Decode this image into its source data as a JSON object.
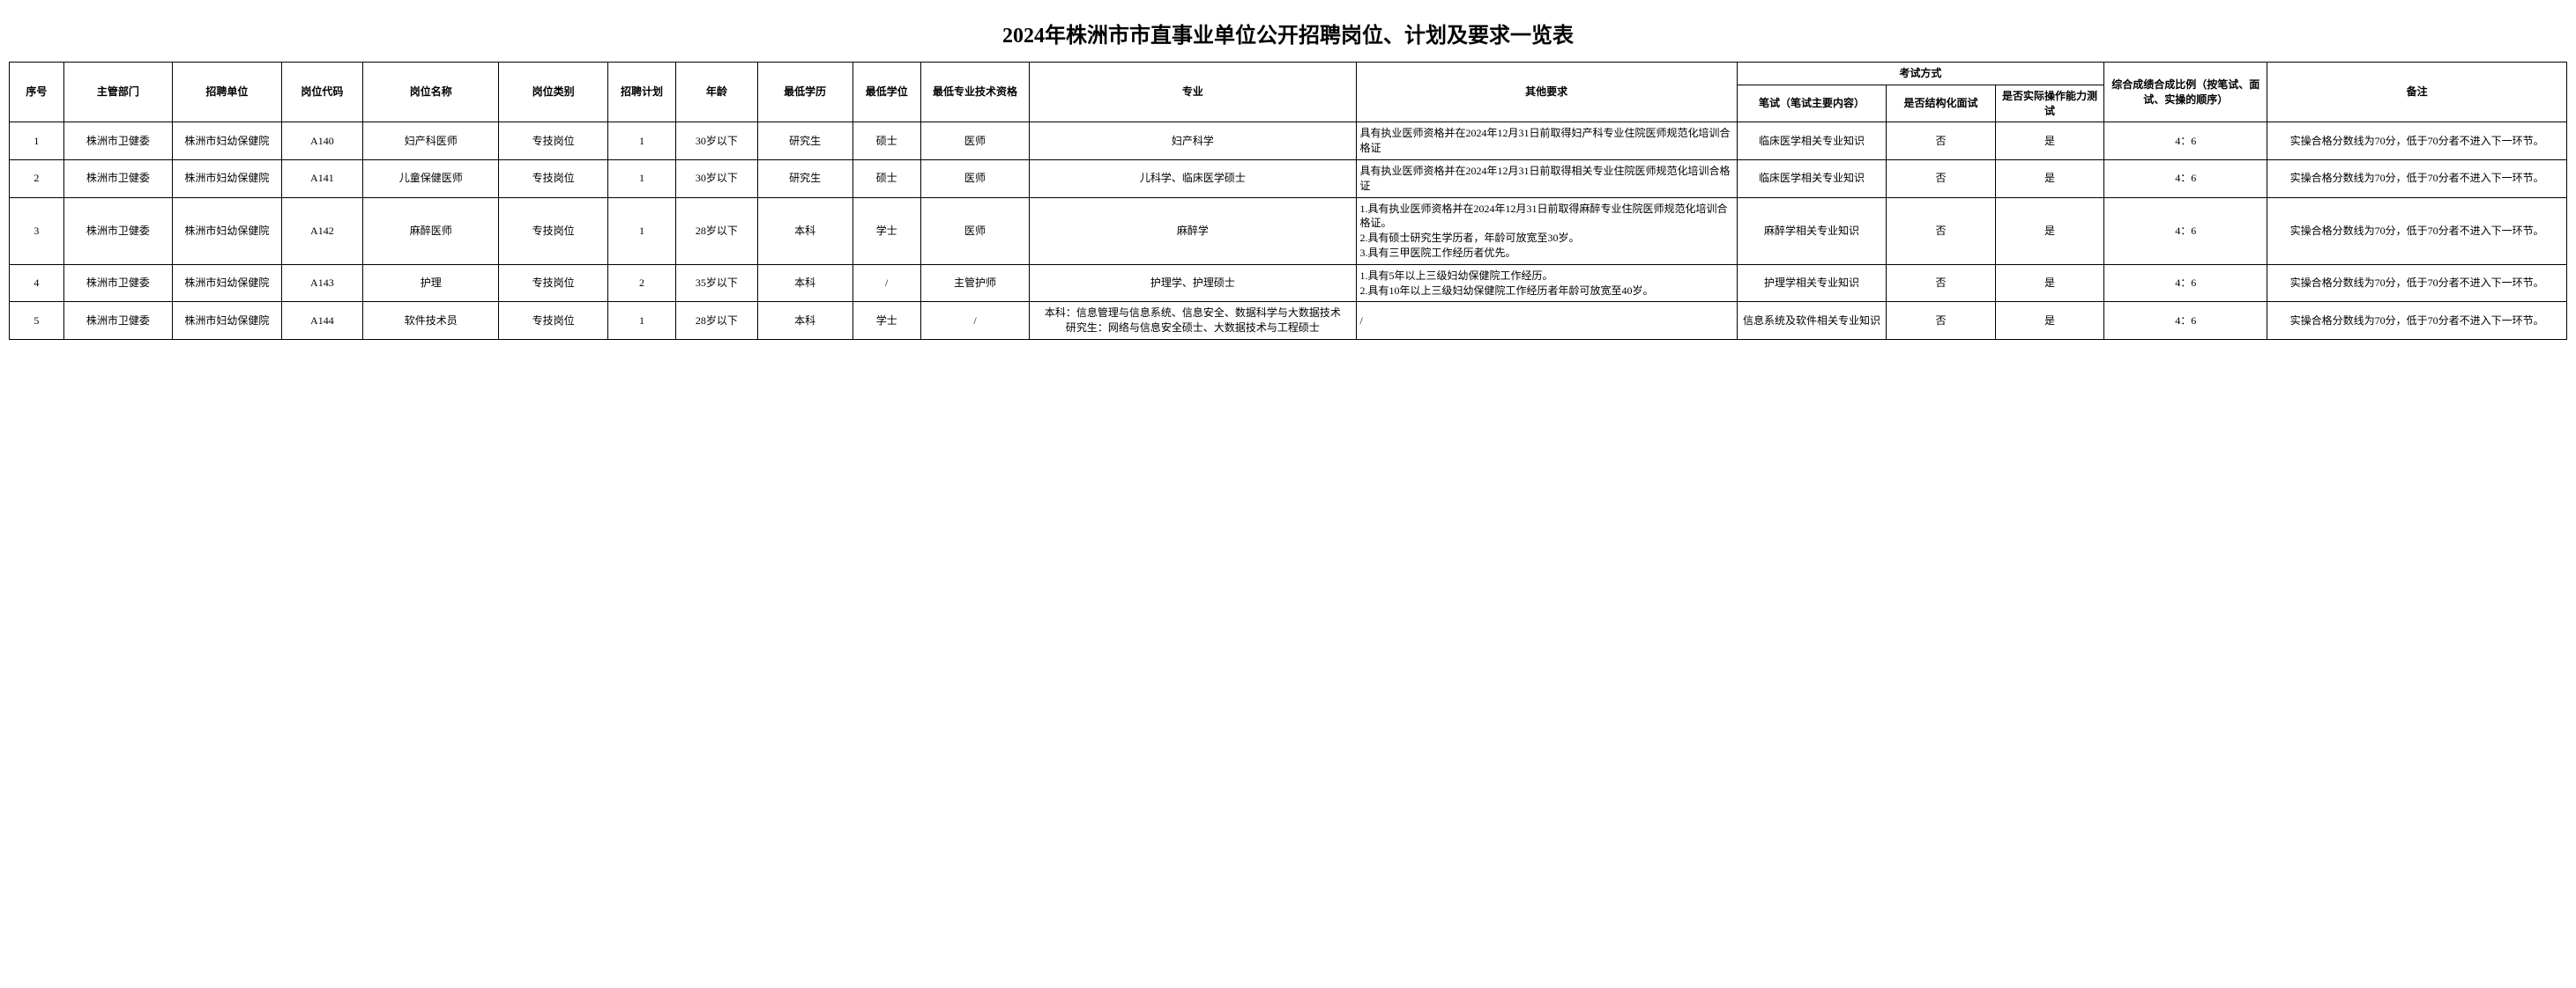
{
  "title": "2024年株洲市市直事业单位公开招聘岗位、计划及要求一览表",
  "headers": {
    "seq": "序号",
    "dept": "主管部门",
    "unit": "招聘单位",
    "code": "岗位代码",
    "pname": "岗位名称",
    "ptype": "岗位类别",
    "plan": "招聘计划",
    "age": "年龄",
    "edu": "最低学历",
    "deg": "最低学位",
    "tech": "最低专业技术资格",
    "major": "专业",
    "other": "其他要求",
    "exam_group": "考试方式",
    "exam": "笔试（笔试主要内容）",
    "struct": "是否结构化面试",
    "prac": "是否实际操作能力测试",
    "ratio": "综合成绩合成比例（按笔试、面试、实操的顺序）",
    "note": "备注"
  },
  "rows": [
    {
      "seq": "1",
      "dept": "株洲市卫健委",
      "unit": "株洲市妇幼保健院",
      "code": "A140",
      "pname": "妇产科医师",
      "ptype": "专技岗位",
      "plan": "1",
      "age": "30岁以下",
      "edu": "研究生",
      "deg": "硕士",
      "tech": "医师",
      "major": "妇产科学",
      "other": "具有执业医师资格并在2024年12月31日前取得妇产科专业住院医师规范化培训合格证",
      "exam": "临床医学相关专业知识",
      "struct": "否",
      "prac": "是",
      "ratio": "4：6",
      "note": "实操合格分数线为70分，低于70分者不进入下一环节。"
    },
    {
      "seq": "2",
      "dept": "株洲市卫健委",
      "unit": "株洲市妇幼保健院",
      "code": "A141",
      "pname": "儿童保健医师",
      "ptype": "专技岗位",
      "plan": "1",
      "age": "30岁以下",
      "edu": "研究生",
      "deg": "硕士",
      "tech": "医师",
      "major": "儿科学、临床医学硕士",
      "other": "具有执业医师资格并在2024年12月31日前取得相关专业住院医师规范化培训合格证",
      "exam": "临床医学相关专业知识",
      "struct": "否",
      "prac": "是",
      "ratio": "4：6",
      "note": "实操合格分数线为70分，低于70分者不进入下一环节。"
    },
    {
      "seq": "3",
      "dept": "株洲市卫健委",
      "unit": "株洲市妇幼保健院",
      "code": "A142",
      "pname": "麻醉医师",
      "ptype": "专技岗位",
      "plan": "1",
      "age": "28岁以下",
      "edu": "本科",
      "deg": "学士",
      "tech": "医师",
      "major": "麻醉学",
      "other": "1.具有执业医师资格并在2024年12月31日前取得麻醉专业住院医师规范化培训合格证。\n2.具有硕士研究生学历者，年龄可放宽至30岁。\n3.具有三甲医院工作经历者优先。",
      "exam": "麻醉学相关专业知识",
      "struct": "否",
      "prac": "是",
      "ratio": "4：6",
      "note": "实操合格分数线为70分，低于70分者不进入下一环节。"
    },
    {
      "seq": "4",
      "dept": "株洲市卫健委",
      "unit": "株洲市妇幼保健院",
      "code": "A143",
      "pname": "护理",
      "ptype": "专技岗位",
      "plan": "2",
      "age": "35岁以下",
      "edu": "本科",
      "deg": "/",
      "tech": "主管护师",
      "major": "护理学、护理硕士",
      "other": "1.具有5年以上三级妇幼保健院工作经历。\n2.具有10年以上三级妇幼保健院工作经历者年龄可放宽至40岁。",
      "exam": "护理学相关专业知识",
      "struct": "否",
      "prac": "是",
      "ratio": "4：6",
      "note": "实操合格分数线为70分，低于70分者不进入下一环节。"
    },
    {
      "seq": "5",
      "dept": "株洲市卫健委",
      "unit": "株洲市妇幼保健院",
      "code": "A144",
      "pname": "软件技术员",
      "ptype": "专技岗位",
      "plan": "1",
      "age": "28岁以下",
      "edu": "本科",
      "deg": "学士",
      "tech": "/",
      "major": "本科：信息管理与信息系统、信息安全、数据科学与大数据技术\n研究生：网络与信息安全硕士、大数据技术与工程硕士",
      "other": "/",
      "exam": "信息系统及软件相关专业知识",
      "struct": "否",
      "prac": "是",
      "ratio": "4：6",
      "note": "实操合格分数线为70分，低于70分者不进入下一环节。"
    }
  ]
}
